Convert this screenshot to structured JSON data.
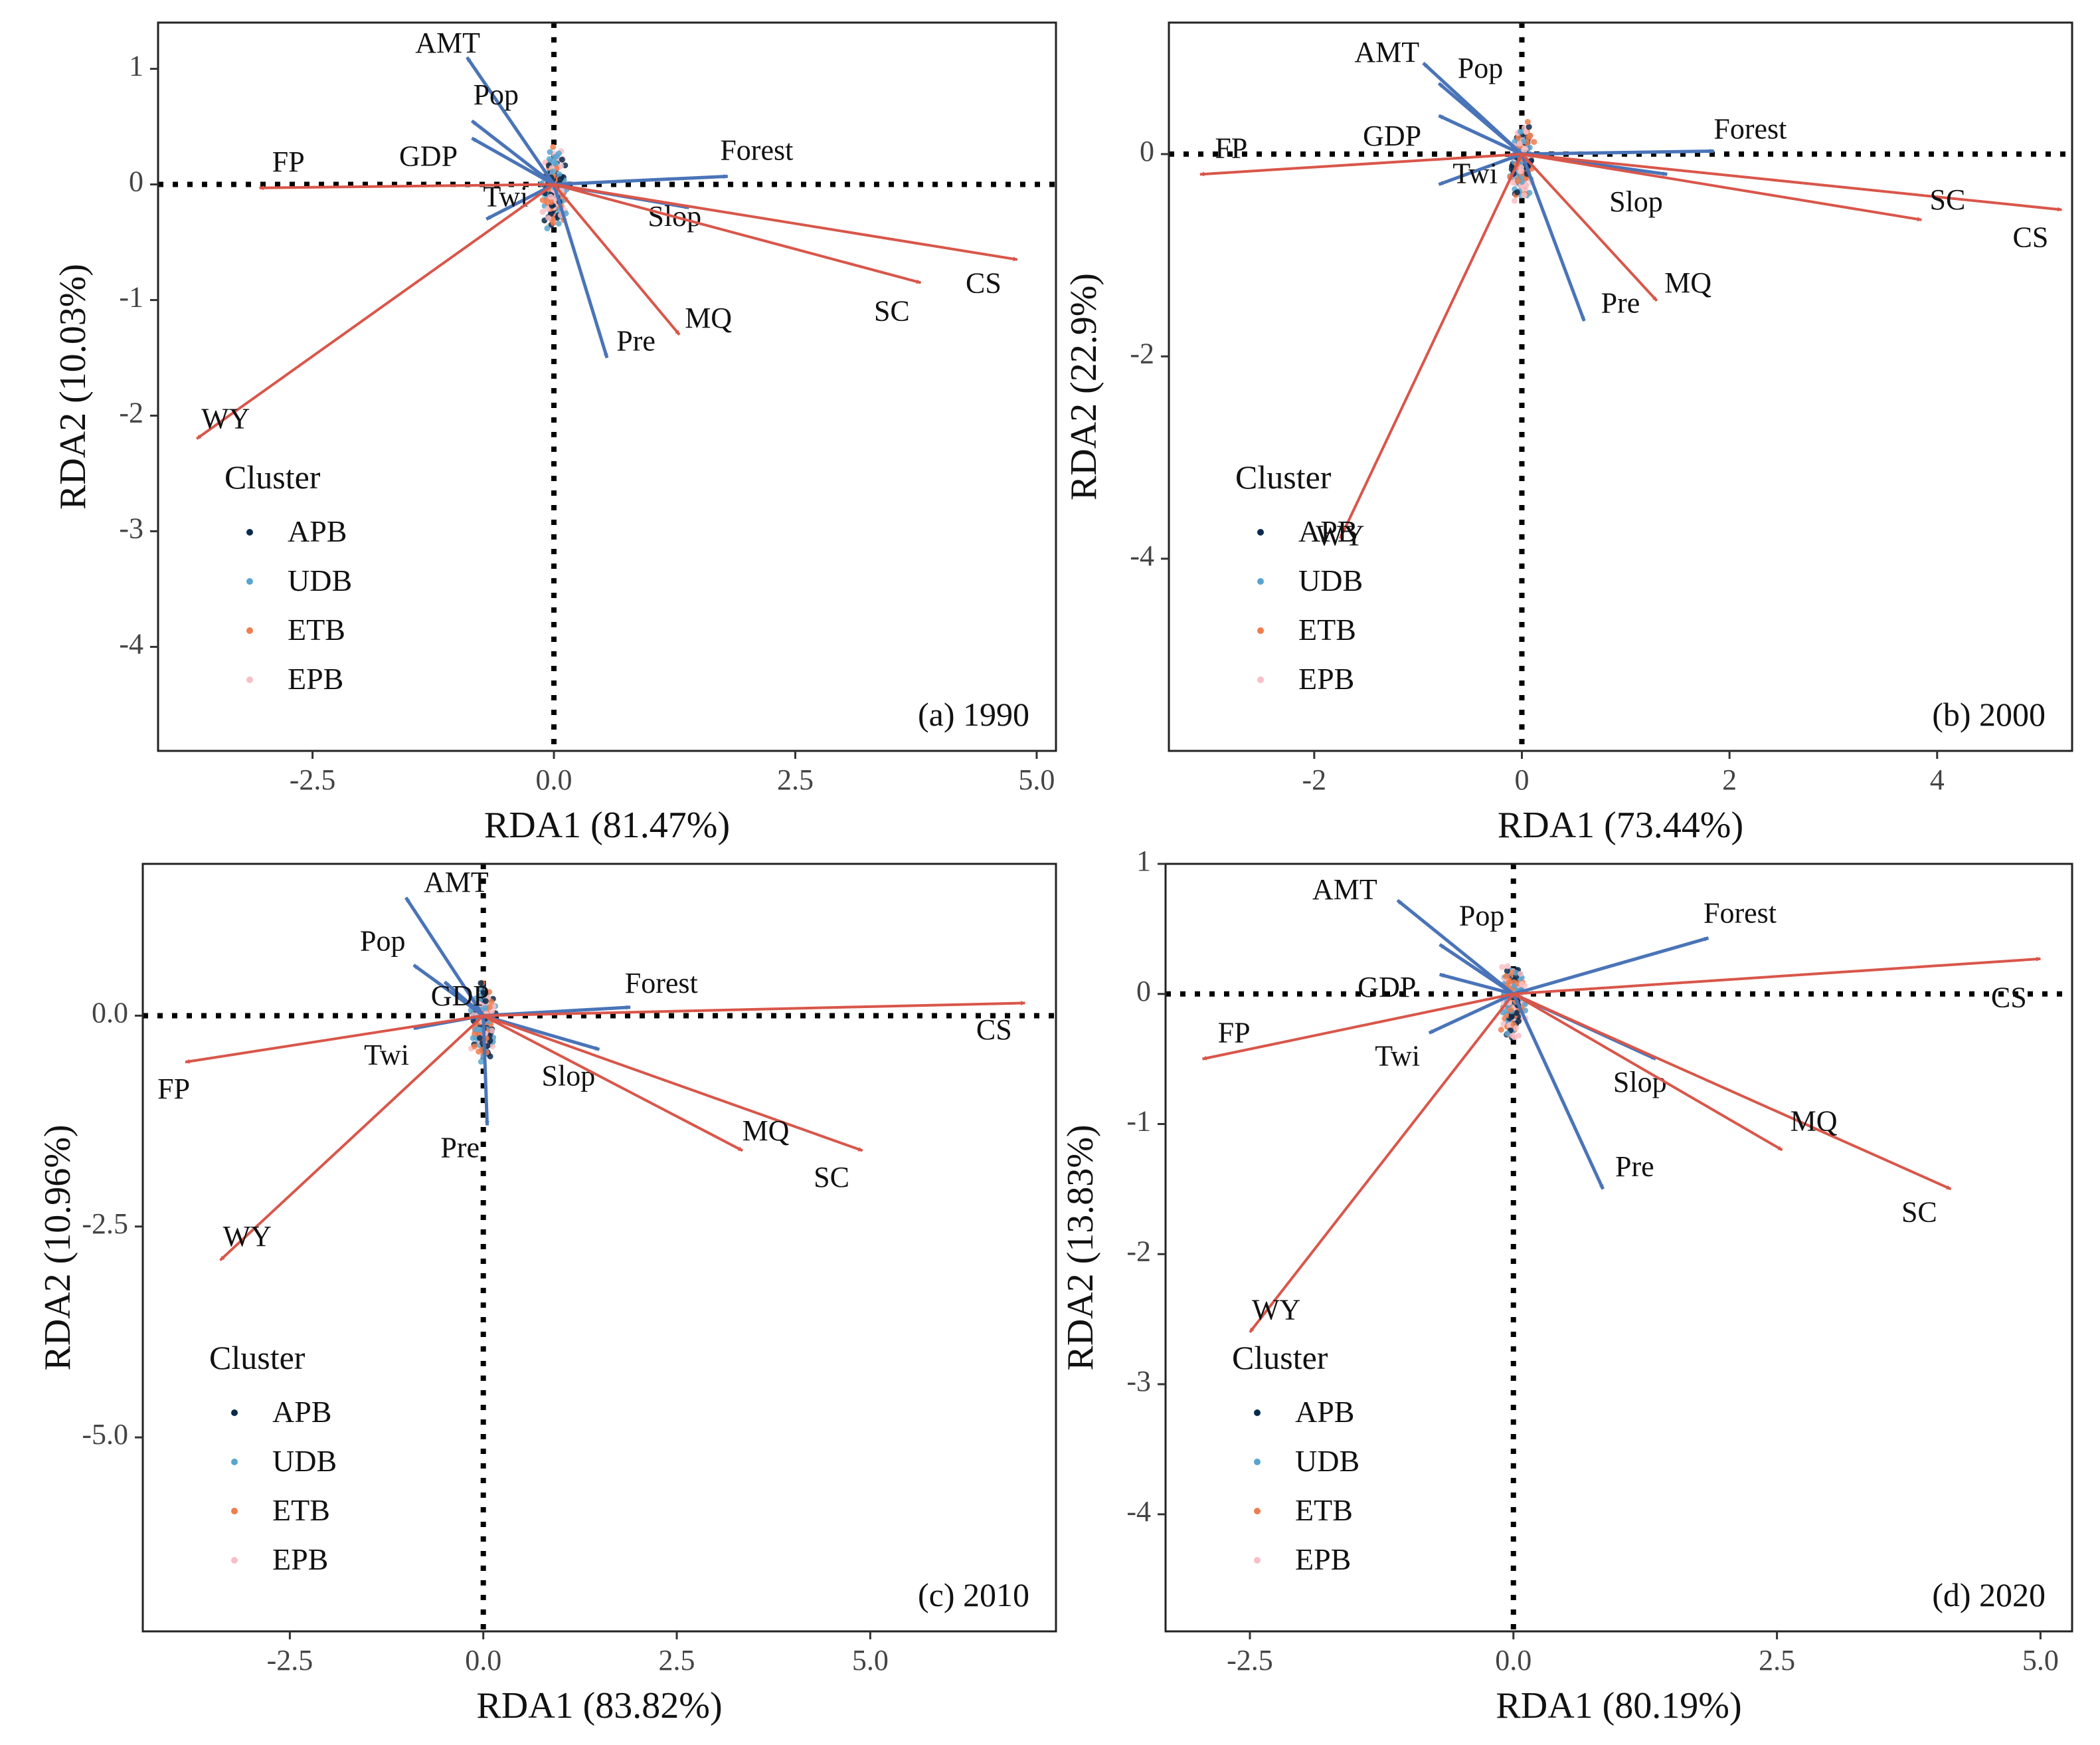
{
  "colors": {
    "response": "#d9564a",
    "explanatory": "#4a74b8",
    "APB": "#0b2b4c",
    "UDB": "#5aa4d0",
    "ETB": "#f07d4e",
    "EPB": "#f9bfc6"
  },
  "legend_title": "Cluster",
  "clusters": [
    "APB",
    "UDB",
    "ETB",
    "EPB"
  ],
  "chart_data": [
    {
      "type": "scatter",
      "title": "",
      "panel_label": "(a) 1990",
      "xlabel": "RDA1 (81.47%)",
      "ylabel": "RDA2 (10.03%)",
      "xlim": [
        -4.1,
        5.2
      ],
      "ylim": [
        -4.9,
        1.4
      ],
      "xticks": [
        -2.5,
        0,
        2.5,
        5
      ],
      "xtick_labels": [
        "-2.5",
        "0.0",
        "2.5",
        "5.0"
      ],
      "yticks": [
        1,
        0,
        -1,
        -2,
        -3,
        -4
      ],
      "ytick_labels": [
        "1",
        "0",
        "-1",
        "-2",
        "-3",
        "-4"
      ],
      "legend_position": "bottom-left",
      "vectors": [
        {
          "name": "AMT",
          "type": "explanatory",
          "x": -0.9,
          "y": 1.1,
          "lx": -1.1,
          "ly": 1.2
        },
        {
          "name": "Pop",
          "type": "explanatory",
          "x": -0.85,
          "y": 0.55,
          "lx": -0.6,
          "ly": 0.75
        },
        {
          "name": "GDP",
          "type": "explanatory",
          "x": -0.85,
          "y": 0.4,
          "lx": -1.3,
          "ly": 0.22
        },
        {
          "name": "Twi",
          "type": "explanatory",
          "x": -0.7,
          "y": -0.3,
          "lx": -0.5,
          "ly": -0.13
        },
        {
          "name": "Forest",
          "type": "explanatory",
          "x": 1.8,
          "y": 0.07,
          "lx": 2.1,
          "ly": 0.27
        },
        {
          "name": "Slop",
          "type": "explanatory",
          "x": 1.4,
          "y": -0.2,
          "lx": 1.25,
          "ly": -0.3
        },
        {
          "name": "Pre",
          "type": "explanatory",
          "x": 0.55,
          "y": -1.5,
          "lx": 0.85,
          "ly": -1.38
        },
        {
          "name": "FP",
          "type": "response",
          "x": -3.05,
          "y": -0.03,
          "lx": -2.75,
          "ly": 0.17
        },
        {
          "name": "WY",
          "type": "response",
          "x": -3.7,
          "y": -2.2,
          "lx": -3.4,
          "ly": -2.05
        },
        {
          "name": "CS",
          "type": "response",
          "x": 4.8,
          "y": -0.65,
          "lx": 4.45,
          "ly": -0.88
        },
        {
          "name": "SC",
          "type": "response",
          "x": 3.8,
          "y": -0.85,
          "lx": 3.5,
          "ly": -1.12
        },
        {
          "name": "MQ",
          "type": "response",
          "x": 1.3,
          "y": -1.3,
          "lx": 1.6,
          "ly": -1.18
        }
      ]
    },
    {
      "type": "scatter",
      "title": "",
      "panel_label": "(b) 2000",
      "xlabel": "RDA1 (73.44%)",
      "ylabel": "RDA2 (22.9%)",
      "xlim": [
        -3.4,
        5.3
      ],
      "ylim": [
        -5.9,
        1.3
      ],
      "xticks": [
        -2,
        0,
        2,
        4
      ],
      "xtick_labels": [
        "-2",
        "0",
        "2",
        "4"
      ],
      "yticks": [
        0,
        -2,
        -4
      ],
      "ytick_labels": [
        "0",
        "-2",
        "-4"
      ],
      "legend_position": "bottom-left",
      "vectors": [
        {
          "name": "AMT",
          "type": "explanatory",
          "x": -0.95,
          "y": 0.9,
          "lx": -1.3,
          "ly": 0.98
        },
        {
          "name": "Pop",
          "type": "explanatory",
          "x": -0.8,
          "y": 0.7,
          "lx": -0.4,
          "ly": 0.82
        },
        {
          "name": "GDP",
          "type": "explanatory",
          "x": -0.8,
          "y": 0.38,
          "lx": -1.25,
          "ly": 0.15
        },
        {
          "name": "Twi",
          "type": "explanatory",
          "x": -0.8,
          "y": -0.3,
          "lx": -0.45,
          "ly": -0.22
        },
        {
          "name": "Forest",
          "type": "explanatory",
          "x": 1.85,
          "y": 0.03,
          "lx": 2.2,
          "ly": 0.22
        },
        {
          "name": "Slop",
          "type": "explanatory",
          "x": 1.4,
          "y": -0.2,
          "lx": 1.1,
          "ly": -0.5
        },
        {
          "name": "Pre",
          "type": "explanatory",
          "x": 0.6,
          "y": -1.65,
          "lx": 0.95,
          "ly": -1.5
        },
        {
          "name": "FP",
          "type": "response",
          "x": -3.1,
          "y": -0.2,
          "lx": -2.8,
          "ly": 0.03
        },
        {
          "name": "WY",
          "type": "response",
          "x": -1.75,
          "y": -3.8,
          "lx": -1.75,
          "ly": -3.8
        },
        {
          "name": "CS",
          "type": "response",
          "x": 5.2,
          "y": -0.55,
          "lx": 4.9,
          "ly": -0.85
        },
        {
          "name": "SC",
          "type": "response",
          "x": 3.85,
          "y": -0.65,
          "lx": 4.1,
          "ly": -0.48
        },
        {
          "name": "MQ",
          "type": "response",
          "x": 1.3,
          "y": -1.45,
          "lx": 1.6,
          "ly": -1.3
        }
      ]
    },
    {
      "type": "scatter",
      "title": "",
      "panel_label": "(c) 2010",
      "xlabel": "RDA1 (83.82%)",
      "ylabel": "RDA2 (10.96%)",
      "xlim": [
        -4.4,
        7.4
      ],
      "ylim": [
        -7.3,
        1.8
      ],
      "xticks": [
        -2.5,
        0,
        2.5,
        5
      ],
      "xtick_labels": [
        "-2.5",
        "0.0",
        "2.5",
        "5.0"
      ],
      "yticks": [
        0,
        -2.5,
        -5
      ],
      "ytick_labels": [
        "0.0",
        "-2.5",
        "-5.0"
      ],
      "legend_position": "bottom-left",
      "vectors": [
        {
          "name": "AMT",
          "type": "explanatory",
          "x": -1.0,
          "y": 1.4,
          "lx": -0.35,
          "ly": 1.55
        },
        {
          "name": "Pop",
          "type": "explanatory",
          "x": -0.9,
          "y": 0.6,
          "lx": -1.3,
          "ly": 0.85
        },
        {
          "name": "GDP",
          "type": "explanatory",
          "x": -0.5,
          "y": 0.4,
          "lx": -0.3,
          "ly": 0.2
        },
        {
          "name": "Twi",
          "type": "explanatory",
          "x": -0.9,
          "y": -0.15,
          "lx": -1.25,
          "ly": -0.5
        },
        {
          "name": "Forest",
          "type": "explanatory",
          "x": 1.9,
          "y": 0.1,
          "lx": 2.3,
          "ly": 0.35
        },
        {
          "name": "Slop",
          "type": "explanatory",
          "x": 1.5,
          "y": -0.4,
          "lx": 1.1,
          "ly": -0.75
        },
        {
          "name": "Pre",
          "type": "explanatory",
          "x": 0.05,
          "y": -1.3,
          "lx": -0.3,
          "ly": -1.6
        },
        {
          "name": "FP",
          "type": "response",
          "x": -3.85,
          "y": -0.55,
          "lx": -4.0,
          "ly": -0.9
        },
        {
          "name": "WY",
          "type": "response",
          "x": -3.4,
          "y": -2.9,
          "lx": -3.05,
          "ly": -2.65
        },
        {
          "name": "CS",
          "type": "response",
          "x": 7.0,
          "y": 0.15,
          "lx": 6.6,
          "ly": -0.2
        },
        {
          "name": "SC",
          "type": "response",
          "x": 4.9,
          "y": -1.6,
          "lx": 4.5,
          "ly": -1.95
        },
        {
          "name": "MQ",
          "type": "response",
          "x": 3.35,
          "y": -1.6,
          "lx": 3.65,
          "ly": -1.4
        }
      ]
    },
    {
      "type": "scatter",
      "title": "",
      "panel_label": "(d)  2020",
      "xlabel": "RDA1 (80.19%)",
      "ylabel": "RDA2 (13.83%)",
      "xlim": [
        -3.3,
        5.3
      ],
      "ylim": [
        -4.9,
        1.0
      ],
      "xticks": [
        -2.5,
        0,
        2.5,
        5
      ],
      "xtick_labels": [
        "-2.5",
        "0.0",
        "2.5",
        "5.0"
      ],
      "yticks": [
        1,
        0,
        -1,
        -2,
        -3,
        -4
      ],
      "ytick_labels": [
        "1",
        "0",
        "-1",
        "-2",
        "-3",
        "-4"
      ],
      "legend_position": "bottom-left",
      "vectors": [
        {
          "name": "AMT",
          "type": "explanatory",
          "x": -1.1,
          "y": 0.72,
          "lx": -1.6,
          "ly": 0.78
        },
        {
          "name": "Pop",
          "type": "explanatory",
          "x": -0.7,
          "y": 0.38,
          "lx": -0.3,
          "ly": 0.58
        },
        {
          "name": "GDP",
          "type": "explanatory",
          "x": -0.7,
          "y": 0.15,
          "lx": -1.2,
          "ly": 0.03
        },
        {
          "name": "Twi",
          "type": "explanatory",
          "x": -0.8,
          "y": -0.3,
          "lx": -1.1,
          "ly": -0.5
        },
        {
          "name": "Forest",
          "type": "explanatory",
          "x": 1.85,
          "y": 0.43,
          "lx": 2.15,
          "ly": 0.6
        },
        {
          "name": "Slop",
          "type": "explanatory",
          "x": 1.35,
          "y": -0.5,
          "lx": 1.2,
          "ly": -0.7
        },
        {
          "name": "Pre",
          "type": "explanatory",
          "x": 0.85,
          "y": -1.5,
          "lx": 1.15,
          "ly": -1.35
        },
        {
          "name": "FP",
          "type": "response",
          "x": -2.95,
          "y": -0.5,
          "lx": -2.65,
          "ly": -0.32
        },
        {
          "name": "WY",
          "type": "response",
          "x": -2.5,
          "y": -2.6,
          "lx": -2.25,
          "ly": -2.45
        },
        {
          "name": "CS",
          "type": "response",
          "x": 5.0,
          "y": 0.27,
          "lx": 4.7,
          "ly": -0.05
        },
        {
          "name": "SC",
          "type": "response",
          "x": 4.15,
          "y": -1.5,
          "lx": 3.85,
          "ly": -1.7
        },
        {
          "name": "MQ",
          "type": "response",
          "x": 2.55,
          "y": -1.2,
          "lx": 2.85,
          "ly": -1.0
        }
      ]
    }
  ]
}
